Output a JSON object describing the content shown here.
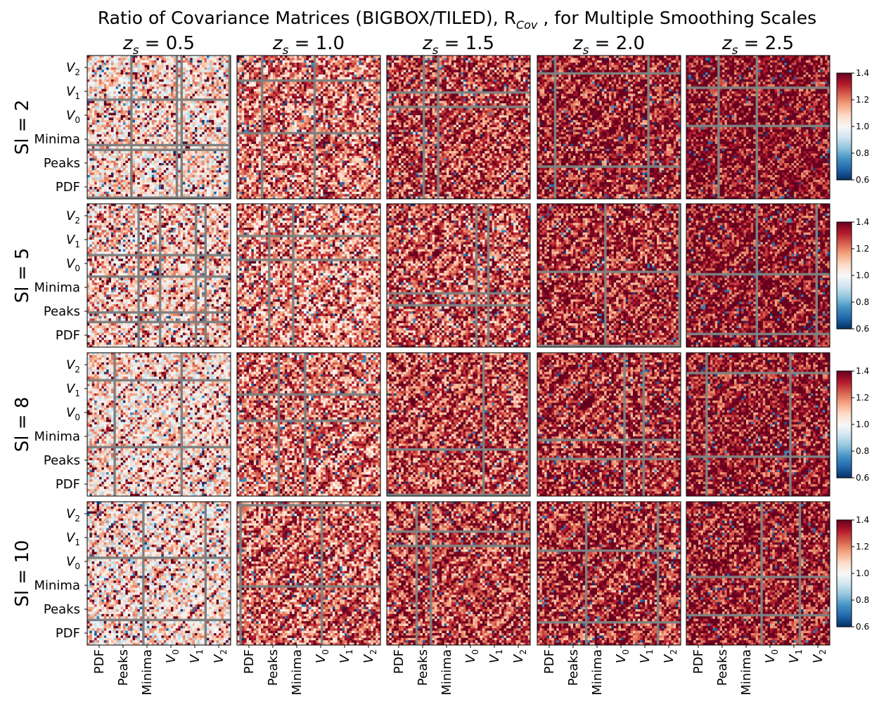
{
  "chart_data": {
    "type": "heatmap",
    "title": "Ratio of Covariance Matrices (BIGBOX/TILED), R",
    "title_subscript": "Cov",
    "title_suffix": ", for Multiple Smoothing Scales",
    "column_labels": [
      "z",
      "z",
      "z",
      "z",
      "z"
    ],
    "column_label_sub": "s",
    "column_values": [
      "= 0.5",
      "= 1.0",
      "= 1.5",
      "= 2.0",
      "= 2.5"
    ],
    "row_labels": [
      "Sl = 2",
      "Sl = 5",
      "Sl = 8",
      "Sl = 10"
    ],
    "block_labels": [
      "PDF",
      "Peaks",
      "Minima",
      "V",
      "V",
      "V"
    ],
    "block_label_subs": [
      "",
      "",
      "",
      "0",
      "1",
      "2"
    ],
    "colorbar": {
      "vmin": 0.6,
      "vmax": 1.4,
      "ticks": [
        "0.6",
        "0.8",
        "1.0",
        "1.2",
        "1.4"
      ],
      "colormap": "RdBu_r",
      "nan_color": "#808080"
    },
    "matrix_size": 60,
    "approx_mean_ratio": [
      [
        1.05,
        1.18,
        1.25,
        1.3,
        1.34
      ],
      [
        1.08,
        1.15,
        1.22,
        1.28,
        1.33
      ],
      [
        1.05,
        1.18,
        1.24,
        1.28,
        1.32
      ],
      [
        1.04,
        1.2,
        1.25,
        1.28,
        1.31
      ]
    ]
  }
}
